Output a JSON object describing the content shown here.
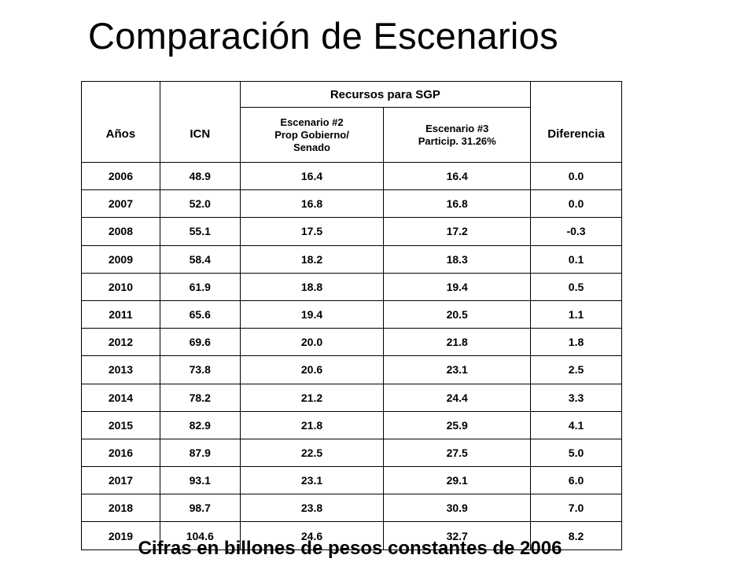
{
  "title": "Comparación de Escenarios",
  "table": {
    "headers": {
      "years": "Años",
      "icn": "ICN",
      "group": "Recursos para SGP",
      "scenario2": "Escenario #2\nProp Gobierno/\nSenado",
      "scenario3": "Escenario #3\nParticip. 31.26%",
      "difference": "Diferencia"
    },
    "rows": [
      [
        "2006",
        "48.9",
        "16.4",
        "16.4",
        "0.0"
      ],
      [
        "2007",
        "52.0",
        "16.8",
        "16.8",
        "0.0"
      ],
      [
        "2008",
        "55.1",
        "17.5",
        "17.2",
        "-0.3"
      ],
      [
        "2009",
        "58.4",
        "18.2",
        "18.3",
        "0.1"
      ],
      [
        "2010",
        "61.9",
        "18.8",
        "19.4",
        "0.5"
      ],
      [
        "2011",
        "65.6",
        "19.4",
        "20.5",
        "1.1"
      ],
      [
        "2012",
        "69.6",
        "20.0",
        "21.8",
        "1.8"
      ],
      [
        "2013",
        "73.8",
        "20.6",
        "23.1",
        "2.5"
      ],
      [
        "2014",
        "78.2",
        "21.2",
        "24.4",
        "3.3"
      ],
      [
        "2015",
        "82.9",
        "21.8",
        "25.9",
        "4.1"
      ],
      [
        "2016",
        "87.9",
        "22.5",
        "27.5",
        "5.0"
      ],
      [
        "2017",
        "93.1",
        "23.1",
        "29.1",
        "6.0"
      ],
      [
        "2018",
        "98.7",
        "23.8",
        "30.9",
        "7.0"
      ],
      [
        "2019",
        "104.6",
        "24.6",
        "32.7",
        "8.2"
      ]
    ]
  },
  "footnote": "Cifras en billones de pesos constantes de 2006"
}
